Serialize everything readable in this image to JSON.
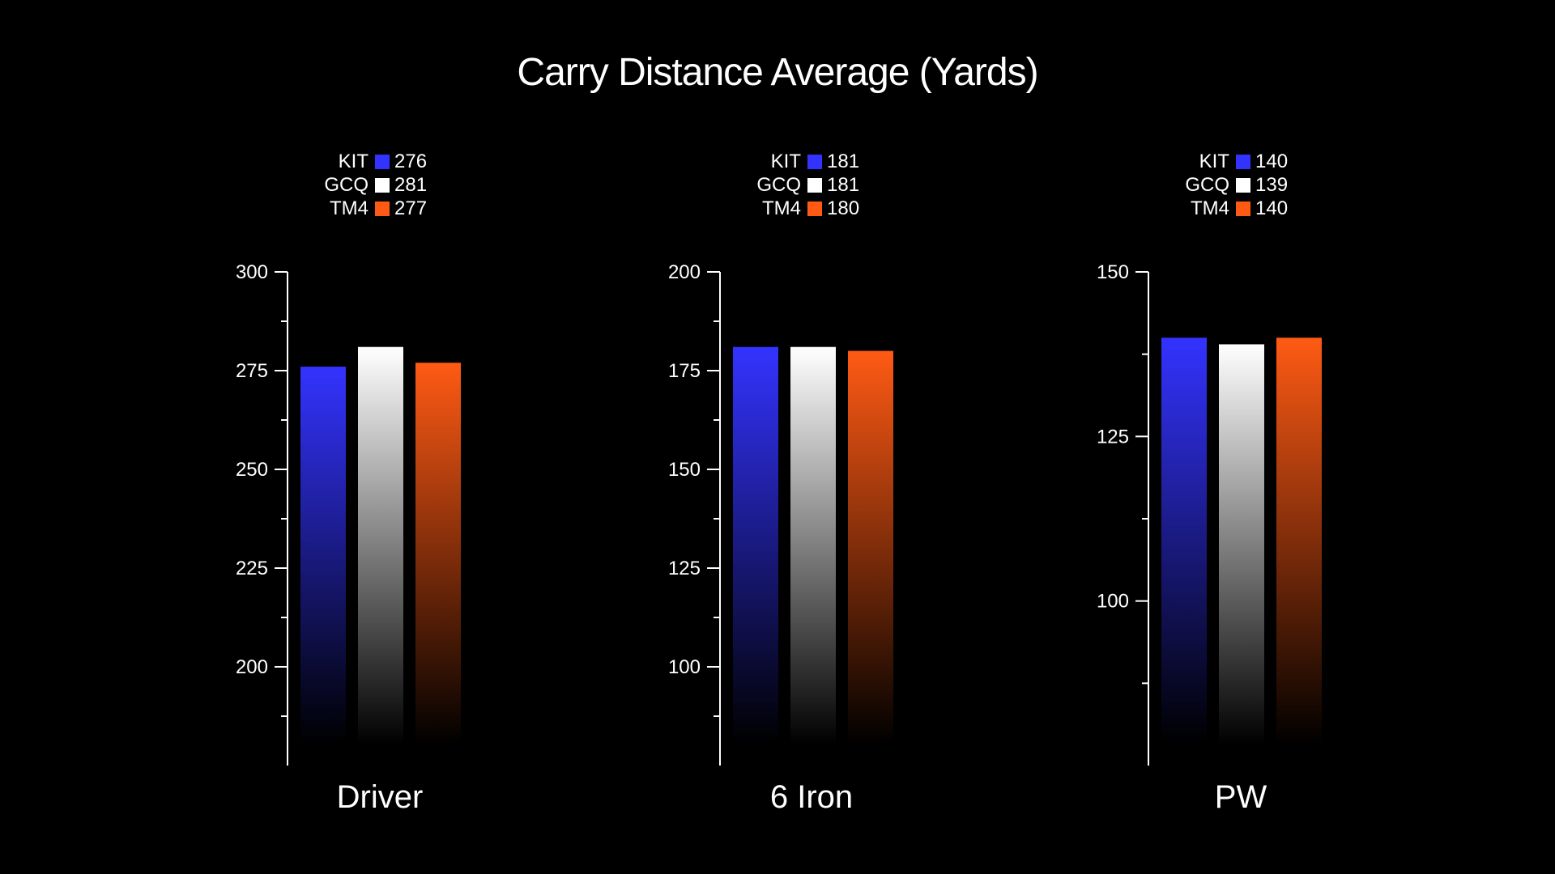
{
  "title": "Carry Distance Average (Yards)",
  "colors": {
    "KIT": "#3333ff",
    "GCQ": "#ffffff",
    "TM4": "#ff5a14",
    "background": "#000000"
  },
  "chart_data": [
    {
      "type": "bar",
      "xlabel": "Driver",
      "categories": [
        "KIT",
        "GCQ",
        "TM4"
      ],
      "values": [
        276,
        281,
        277
      ],
      "ylim": [
        175,
        300
      ],
      "yticks": [
        200,
        225,
        250,
        275,
        300
      ],
      "legend": [
        {
          "name": "KIT",
          "value": "276"
        },
        {
          "name": "GCQ",
          "value": "281"
        },
        {
          "name": "TM4",
          "value": "277"
        }
      ]
    },
    {
      "type": "bar",
      "xlabel": "6 Iron",
      "categories": [
        "KIT",
        "GCQ",
        "TM4"
      ],
      "values": [
        181,
        181,
        180
      ],
      "ylim": [
        75,
        200
      ],
      "yticks": [
        100,
        125,
        150,
        175,
        200
      ],
      "legend": [
        {
          "name": "KIT",
          "value": "181"
        },
        {
          "name": "GCQ",
          "value": "181"
        },
        {
          "name": "TM4",
          "value": "180"
        }
      ]
    },
    {
      "type": "bar",
      "xlabel": "PW",
      "categories": [
        "KIT",
        "GCQ",
        "TM4"
      ],
      "values": [
        140,
        139,
        140
      ],
      "ylim": [
        75,
        150
      ],
      "yticks": [
        100,
        125,
        150
      ],
      "legend": [
        {
          "name": "KIT",
          "value": "140"
        },
        {
          "name": "GCQ",
          "value": "139"
        },
        {
          "name": "TM4",
          "value": "140"
        }
      ]
    }
  ]
}
